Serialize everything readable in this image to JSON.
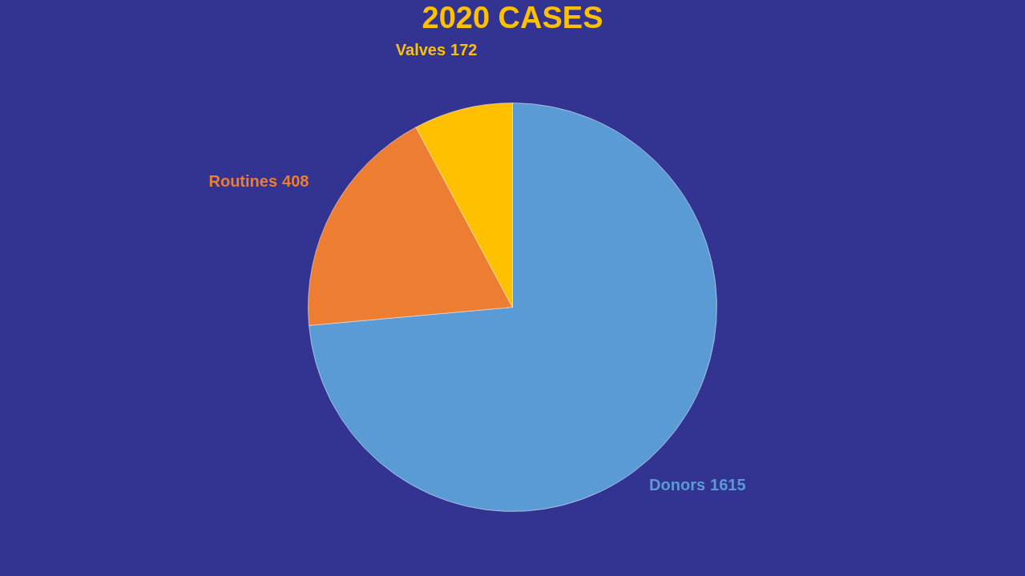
{
  "chart_data": {
    "type": "pie",
    "title": "2020 CASES",
    "categories": [
      "Donors",
      "Routines",
      "Valves"
    ],
    "values": [
      1615,
      408,
      172
    ],
    "colors": [
      "#5b9bd5",
      "#ed7d31",
      "#ffc000"
    ],
    "data_labels": true,
    "legend": false
  }
}
